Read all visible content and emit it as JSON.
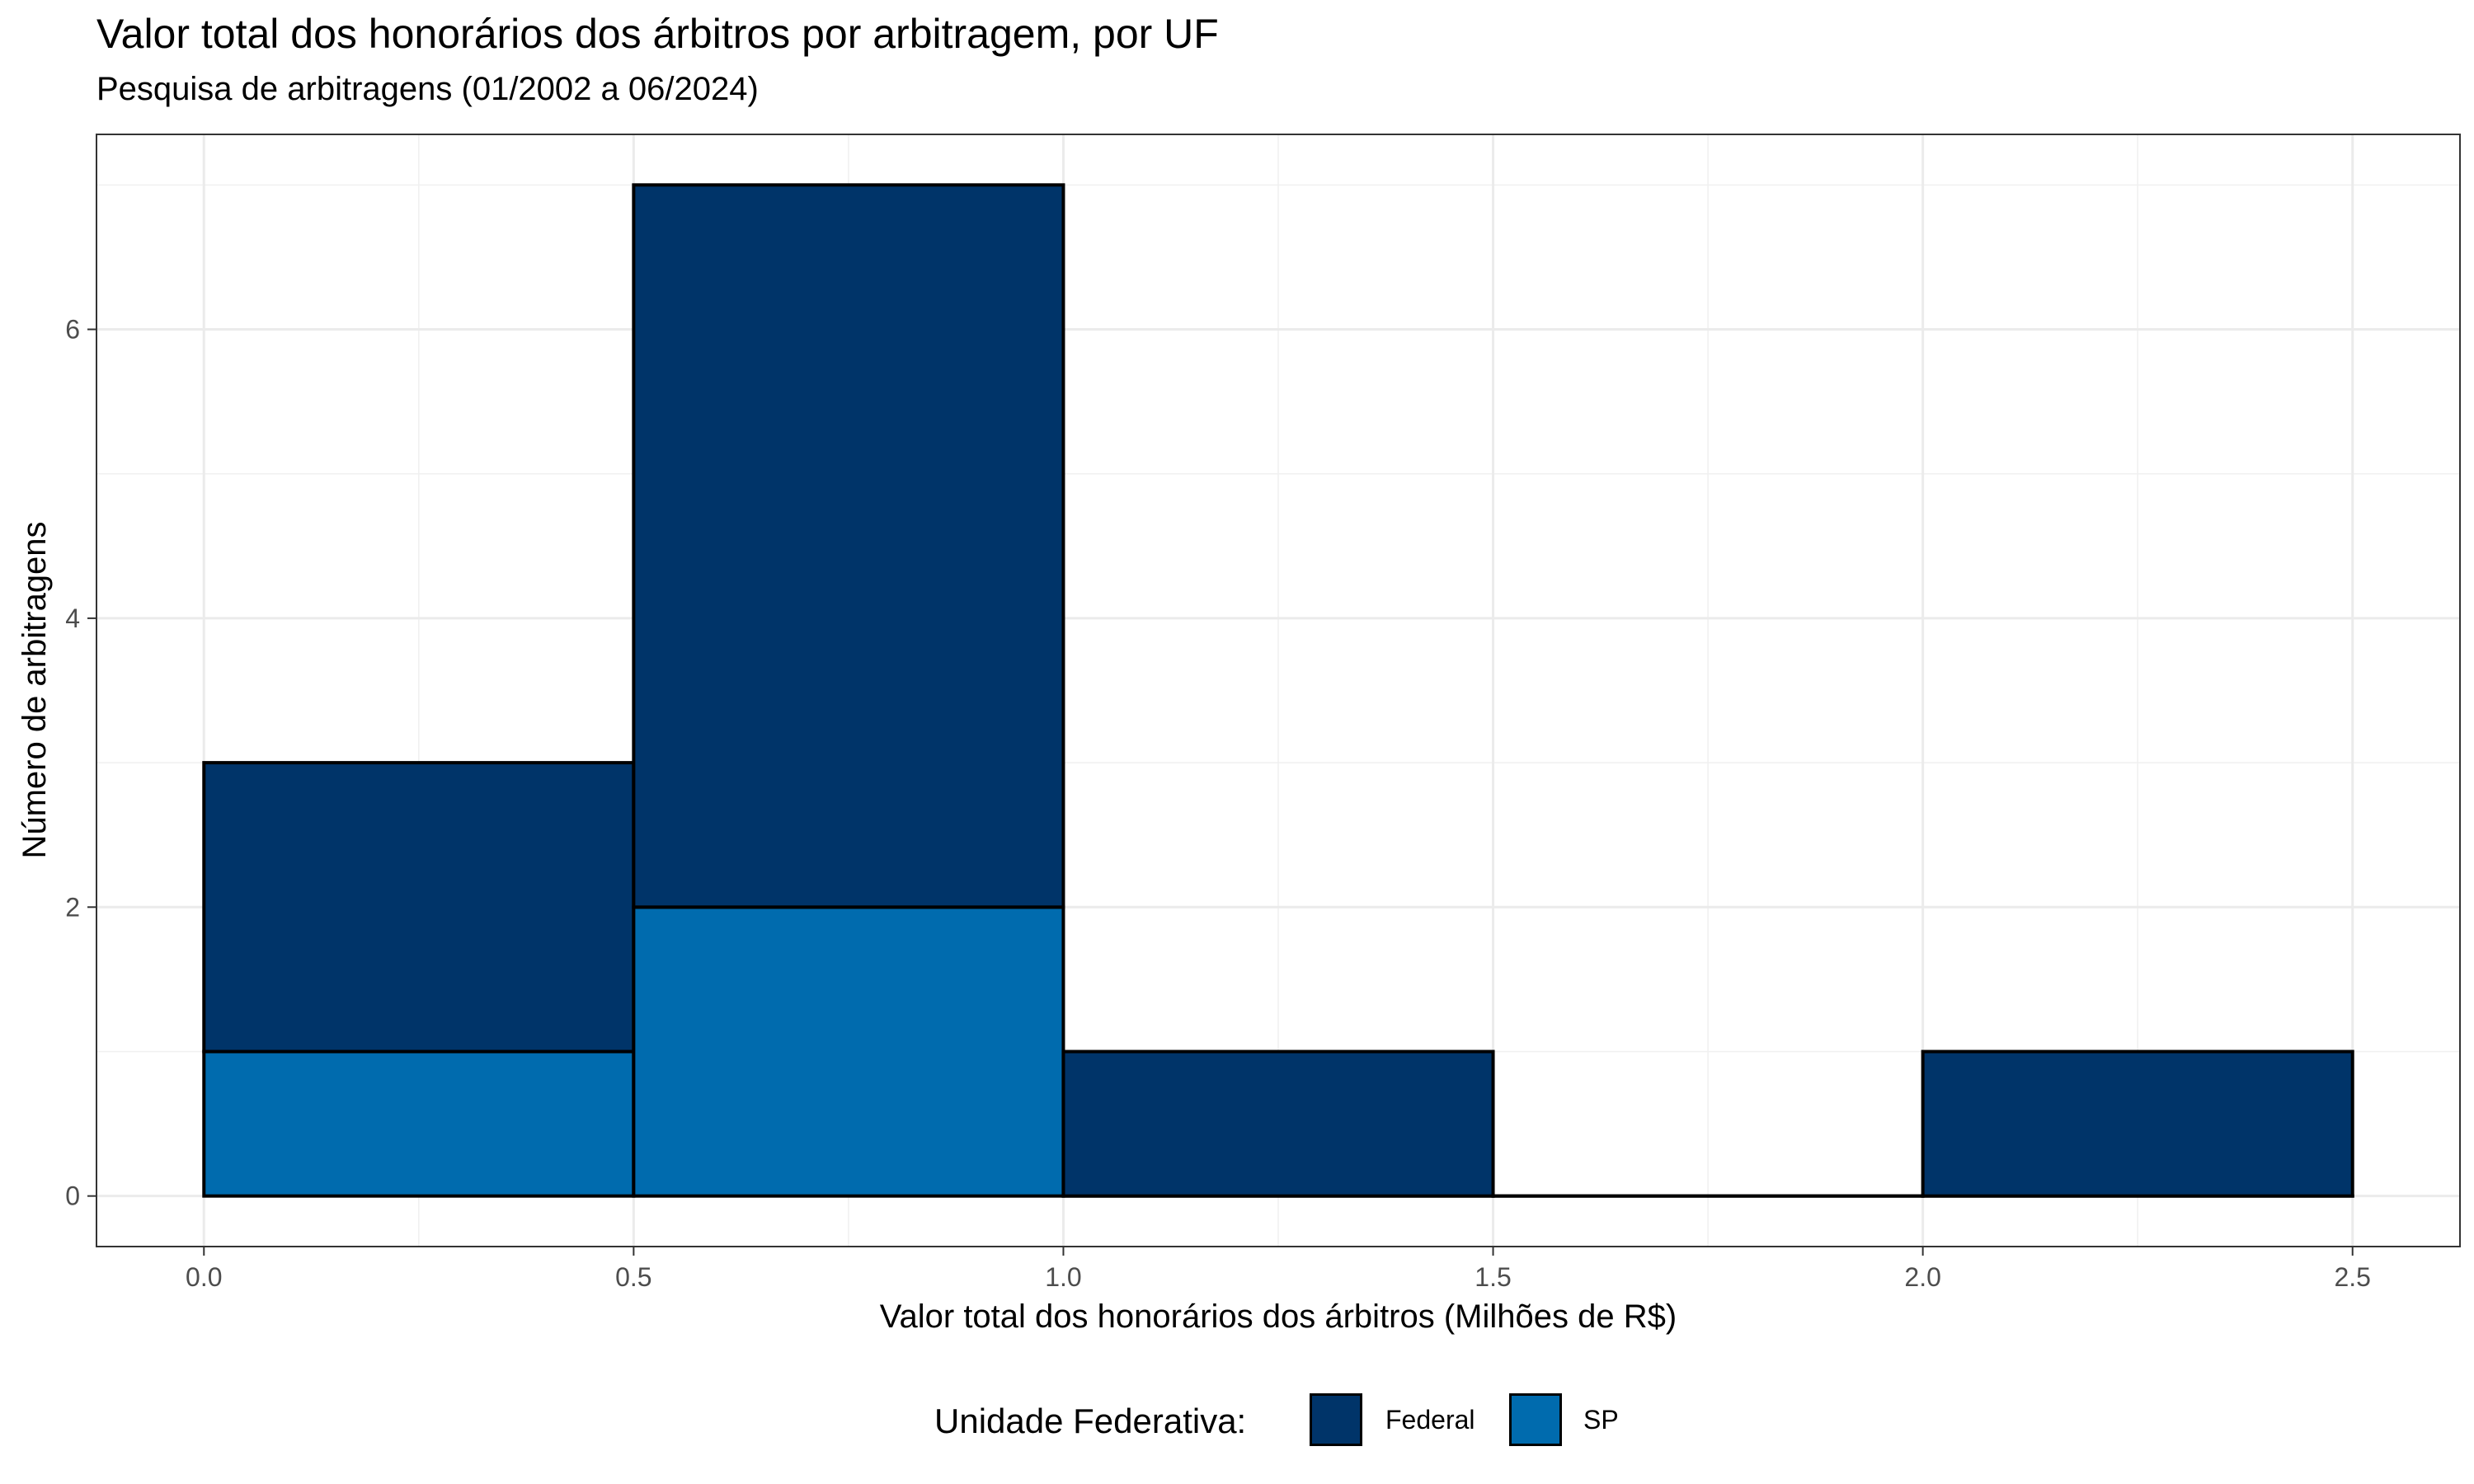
{
  "chart_data": {
    "type": "bar",
    "title": "Valor total dos honorários dos árbitros por arbitragem, por UF",
    "subtitle": "Pesquisa de arbitragens (01/2002 a 06/2024)",
    "xlabel": "Valor total dos honorários dos árbitros (Milhões de R$)",
    "ylabel": "Número de arbitragens",
    "xlim": [
      -0.125,
      2.625
    ],
    "ylim": [
      -0.35,
      7.35
    ],
    "x_ticks": [
      "0.0",
      "0.5",
      "1.0",
      "1.5",
      "2.0",
      "2.5"
    ],
    "y_ticks": [
      "0",
      "2",
      "4",
      "6"
    ],
    "bins": [
      [
        0.0,
        0.5
      ],
      [
        0.5,
        1.0
      ],
      [
        1.0,
        1.5
      ],
      [
        1.5,
        2.0
      ],
      [
        2.0,
        2.5
      ]
    ],
    "stacked": true,
    "series": [
      {
        "name": "SP",
        "color": "#006BAE",
        "values": [
          1,
          2,
          0,
          0,
          0
        ]
      },
      {
        "name": "Federal",
        "color": "#003469",
        "values": [
          2,
          5,
          1,
          0,
          1
        ]
      }
    ],
    "grid": true,
    "legend": {
      "title": "Unidade Federativa:",
      "position": "bottom",
      "items": [
        {
          "label": "Federal",
          "color": "#003469"
        },
        {
          "label": "SP",
          "color": "#006BAE"
        }
      ]
    }
  }
}
